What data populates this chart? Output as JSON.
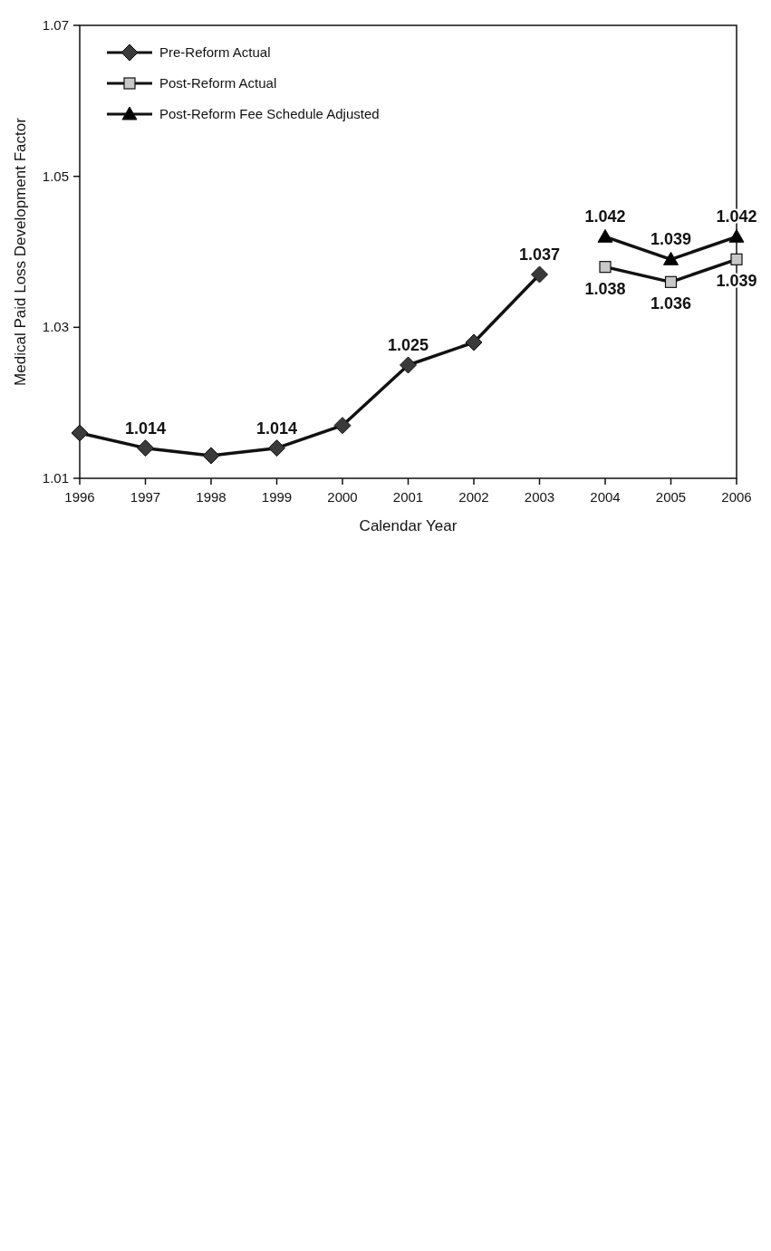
{
  "chart_data": {
    "type": "line",
    "xlabel": "Calendar Year",
    "ylabel": "Medical Paid Loss Development Factor",
    "xlim": [
      1996,
      2006
    ],
    "xticks": [
      1996,
      1997,
      1998,
      1999,
      2000,
      2001,
      2002,
      2003,
      2004,
      2005,
      2006
    ],
    "ylim": [
      1.01,
      1.07
    ],
    "yticks": [
      1.01,
      1.03,
      1.05,
      1.07
    ],
    "legend": "top left",
    "series": [
      {
        "name": "Pre-Reform Actual",
        "color": "#3a3a3a",
        "marker": "diamond",
        "x": [
          1996,
          1997,
          1998,
          1999,
          2000,
          2001,
          2002,
          2003
        ],
        "values": [
          1.016,
          1.014,
          1.013,
          1.014,
          1.017,
          1.025,
          1.028,
          1.037
        ],
        "value_labels": [
          null,
          "1.014",
          null,
          "1.014",
          null,
          "1.025",
          null,
          "1.037"
        ]
      },
      {
        "name": "Post-Reform Actual",
        "color": "#c8c8c8",
        "marker": "square",
        "x": [
          2004,
          2005,
          2006
        ],
        "values": [
          1.038,
          1.036,
          1.039
        ],
        "value_labels": [
          "1.038",
          "1.036",
          "1.039"
        ]
      },
      {
        "name": "Post-Reform Fee Schedule Adjusted",
        "color": "#000000",
        "marker": "triangle",
        "x": [
          2004,
          2005,
          2006
        ],
        "values": [
          1.042,
          1.039,
          1.042
        ],
        "value_labels": [
          "1.042",
          "1.039",
          "1.042"
        ]
      }
    ]
  }
}
